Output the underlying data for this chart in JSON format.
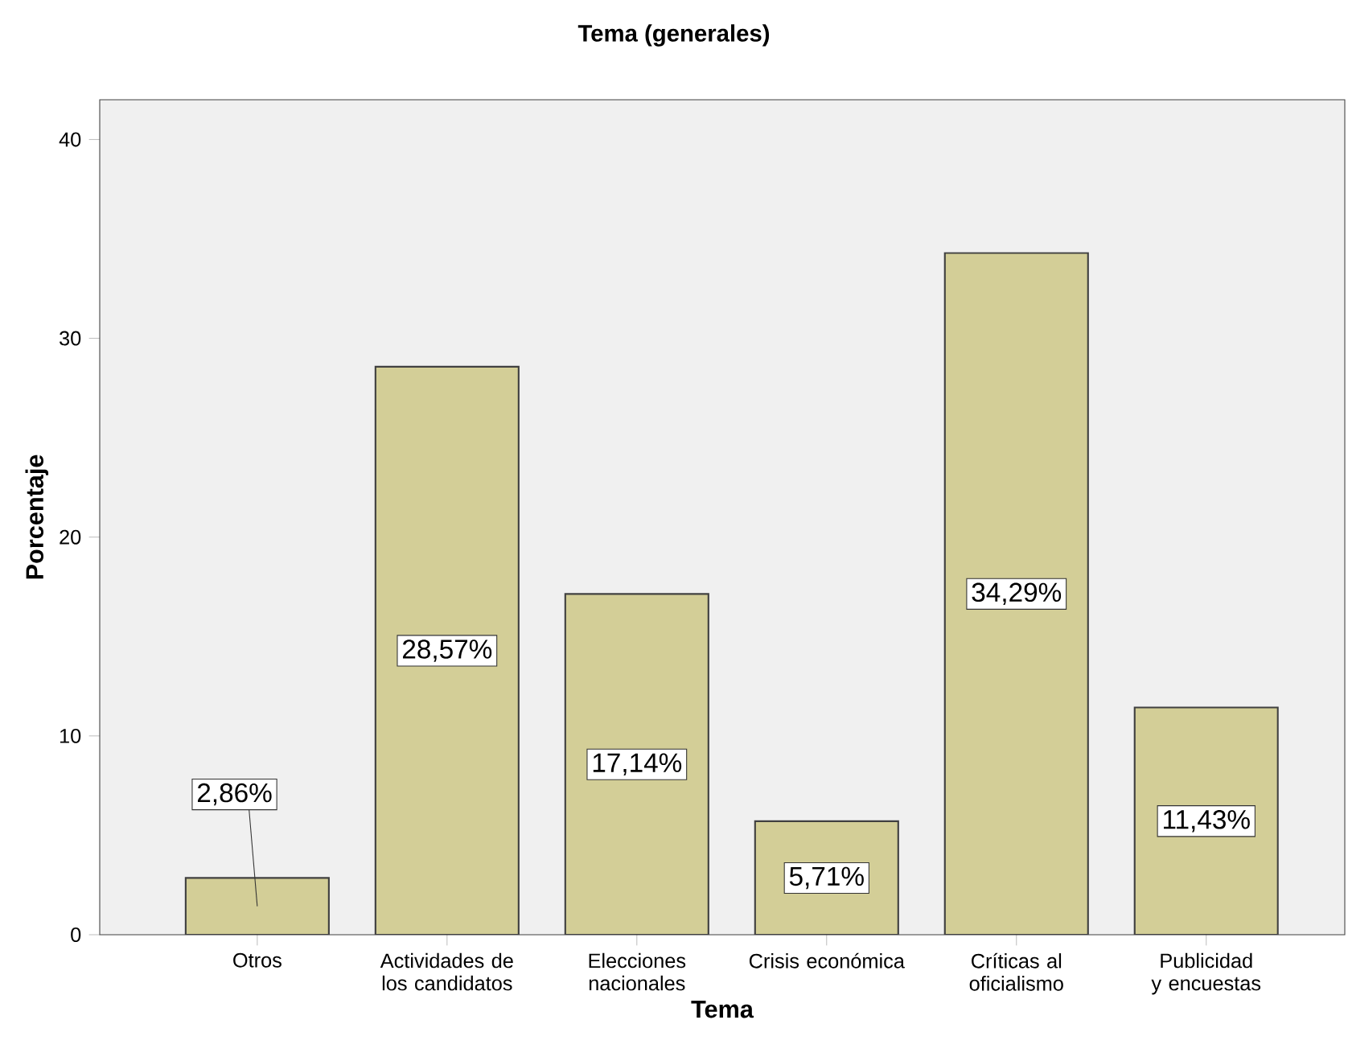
{
  "chart_data": {
    "type": "bar",
    "title": "Tema (generales)",
    "xlabel": "Tema",
    "ylabel": "Porcentaje",
    "categories": [
      "Otros",
      "Actividades de los candidatos",
      "Elecciones nacionales",
      "Crisis económica",
      "Críticas al oficialismo",
      "Publicidad y encuestas"
    ],
    "values": [
      2.86,
      28.57,
      17.14,
      5.71,
      34.29,
      11.43
    ],
    "value_labels": [
      "2,86%",
      "28,57%",
      "17,14%",
      "5,71%",
      "34,29%",
      "11,43%"
    ],
    "color": "#d3ce97",
    "ylim": [
      0,
      42
    ],
    "yticks": [
      0,
      10,
      20,
      30,
      40
    ],
    "grid": false
  }
}
